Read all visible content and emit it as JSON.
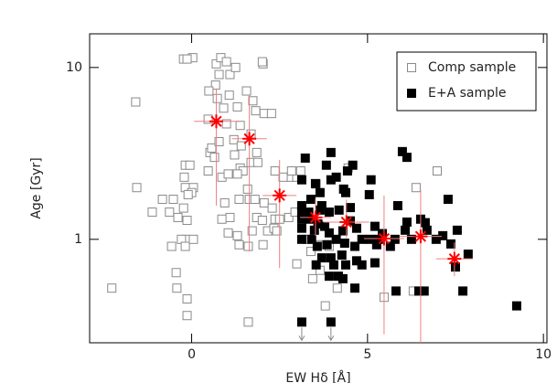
{
  "chart_data": {
    "type": "scatter",
    "x_label": "EW Hδ [Å]",
    "y_label": "Age [Gyr]",
    "xlim": [
      -2.9,
      10.1
    ],
    "ylim": [
      0.25,
      15.7
    ],
    "log_y": true,
    "xticks": [
      0,
      5,
      10
    ],
    "yticks": [
      1,
      10
    ],
    "legend": "upper right",
    "series": [
      {
        "name": "Comp sample",
        "color": "#8a8a8a",
        "marker": "open-square",
        "x": [
          -1.59,
          -2.27,
          -1.56,
          -1.12,
          -0.83,
          -0.63,
          -0.52,
          -0.39,
          -0.23,
          -0.13,
          -0.16,
          -0.57,
          -0.29,
          -0.18,
          0.05,
          -0.44,
          -0.42,
          -0.13,
          -0.13,
          -0.18,
          0.05,
          0,
          -0.1,
          -0.18,
          -0.05,
          -0.21,
          0.47,
          0.52,
          0.57,
          0.78,
          0.65,
          0.86,
          1.04,
          0.94,
          1.09,
          0.86,
          1.04,
          1.3,
          1.35,
          1.61,
          1.72,
          1.85,
          1.35,
          1.64,
          1.8,
          1.59,
          2.06,
          2.29,
          2.37,
          2.01,
          2.16,
          2.34,
          2.03,
          2.42,
          2.76,
          2.94,
          2.81,
          2.99,
          2.84,
          2.6,
          0.47,
          0.73,
          0.68,
          0.7,
          0.83,
          0.99,
          0.78,
          1.09,
          0.91,
          1.07,
          0.99,
          1.2,
          1.22,
          1.38,
          1.46,
          1.69,
          1.41,
          1.88,
          1.74,
          1.82,
          2.06,
          2.27,
          1.56,
          2.03,
          2.01,
          1.3,
          1.25,
          1.38,
          1.3,
          1.69,
          1.85,
          2.37,
          0.49,
          1.61,
          -0.23,
          0.03,
          -0.13,
          2.99,
          3.44,
          3.65,
          3.39,
          3.59,
          3.91,
          3.28,
          4.14,
          3.8,
          5.47,
          4.45,
          6.3,
          6.98,
          6.38,
          3.54,
          3.1,
          2.5
        ],
        "values": [
          6.3,
          0.52,
          2.0,
          1.44,
          1.71,
          1.44,
          1.71,
          1.34,
          1.52,
          1.29,
          1.0,
          0.91,
          1.0,
          0.91,
          1.0,
          0.64,
          0.52,
          0.45,
          0.36,
          2.0,
          2.0,
          1.87,
          1.82,
          2.7,
          2.7,
          2.3,
          2.5,
          3.2,
          3.4,
          3.7,
          3.0,
          2.3,
          2.4,
          1.63,
          1.34,
          1.31,
          1.09,
          1.05,
          0.93,
          0.91,
          1.12,
          1.34,
          1.71,
          1.71,
          1.71,
          1.96,
          1.63,
          1.52,
          1.31,
          1.29,
          1.12,
          1.16,
          0.93,
          1.12,
          1.34,
          1.44,
          2.3,
          2.3,
          2.5,
          2.3,
          5.0,
          6.6,
          7.9,
          10.5,
          11.4,
          10.8,
          9.1,
          9.1,
          5.8,
          6.9,
          4.7,
          3.8,
          3.1,
          2.6,
          2.5,
          2.8,
          3.5,
          2.8,
          6.4,
          5.6,
          5.4,
          5.4,
          7.3,
          10.5,
          10.8,
          5.9,
          10.0,
          4.6,
          2.4,
          4.1,
          3.2,
          2.5,
          7.3,
          0.33,
          11.2,
          11.4,
          11.2,
          0.72,
          0.59,
          0.66,
          0.85,
          0.93,
          0.91,
          1.0,
          0.52,
          0.41,
          0.46,
          2.6,
          0.5,
          2.5,
          2.0,
          2.1,
          2.5,
          1.31
        ]
      },
      {
        "name": "E+A sample",
        "color": "#000000",
        "marker": "filled-square",
        "x": [
          3.23,
          3.96,
          3.83,
          3.96,
          4.11,
          4.32,
          4.43,
          4.58,
          4.38,
          3.52,
          3.65,
          3.39,
          3.7,
          3.13,
          3.33,
          3.65,
          3.91,
          4.19,
          4.51,
          3.13,
          3.33,
          3.59,
          3.13,
          3.49,
          3.78,
          3.91,
          4.3,
          4.51,
          4.69,
          3.13,
          3.41,
          3.57,
          3.85,
          4.11,
          4.35,
          4.64,
          4.84,
          5.08,
          5.26,
          3.7,
          3.96,
          4.27,
          4.69,
          3.54,
          4.04,
          4.38,
          4.84,
          5.21,
          3.91,
          4.17,
          4.64,
          5.81,
          6.46,
          6.61,
          7.71,
          5.21,
          5.31,
          5.42,
          5.65,
          5.78,
          6.07,
          6.25,
          6.51,
          6.69,
          6.95,
          7.14,
          7.37,
          7.55,
          7.5,
          7.86,
          7.29,
          6.12,
          6.64,
          5.86,
          9.24,
          4.3,
          5.05,
          3.13,
          3.96,
          5.99,
          6.12,
          3.13,
          3.13,
          5.1
        ],
        "values": [
          2.97,
          3.2,
          2.7,
          2.22,
          2.3,
          1.96,
          2.5,
          2.7,
          1.87,
          2.11,
          1.87,
          1.71,
          1.57,
          1.44,
          1.44,
          1.48,
          1.44,
          1.48,
          1.53,
          1.31,
          1.31,
          1.23,
          1.16,
          1.13,
          1.19,
          1.09,
          1.12,
          1.28,
          1.16,
          1.0,
          1.0,
          0.91,
          0.93,
          1.0,
          0.95,
          0.91,
          1.0,
          1.0,
          0.93,
          0.78,
          0.78,
          0.81,
          0.75,
          0.71,
          0.71,
          0.71,
          0.71,
          0.73,
          0.61,
          0.61,
          0.52,
          0.5,
          0.5,
          0.5,
          0.5,
          1.19,
          1.0,
          1.08,
          0.91,
          1.0,
          1.13,
          1.0,
          1.31,
          1.13,
          1.0,
          1.05,
          0.94,
          1.13,
          0.69,
          0.82,
          1.71,
          1.26,
          1.25,
          1.57,
          0.41,
          0.59,
          1.82,
          0.33,
          0.33,
          3.24,
          3.0,
          2.22,
          1.57,
          2.22
        ]
      }
    ],
    "upper_limits": {
      "color": "#888888",
      "x": [
        3.13,
        3.96
      ],
      "values": [
        0.33,
        0.33
      ]
    },
    "means": {
      "color": "#ff0000",
      "bar_color": "#f08080",
      "x": [
        0.7,
        1.64,
        2.5,
        3.52,
        4.4,
        5.47,
        6.51,
        7.47
      ],
      "xerr": [
        0.63,
        0.5,
        0.48,
        0.44,
        0.65,
        0.57,
        0.6,
        0.52
      ],
      "values": [
        4.86,
        3.85,
        1.8,
        1.34,
        1.26,
        1.01,
        1.04,
        0.77
      ],
      "y_low": [
        1.57,
        0.85,
        0.68,
        1.05,
        1.02,
        0.28,
        0.25,
        0.61
      ],
      "y_high": [
        7.55,
        6.9,
        2.9,
        1.71,
        1.7,
        1.8,
        1.94,
        0.96
      ]
    }
  }
}
